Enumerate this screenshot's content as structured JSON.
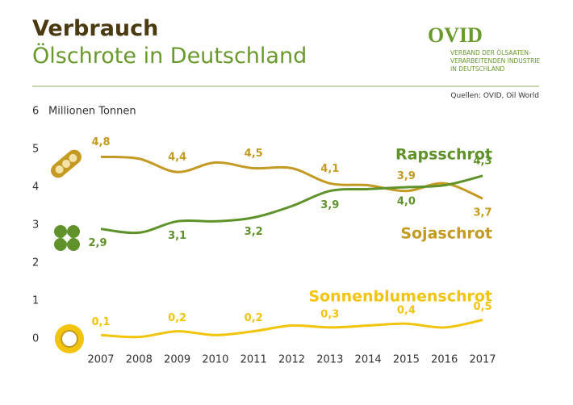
{
  "header": {
    "title": "Verbrauch",
    "subtitle": "Ölschrote in Deutschland",
    "logo": "OVID",
    "org_lines": [
      "VERBAND DER ÖLSAATEN-",
      "VERARBEITENDEN INDUSTRIE",
      "IN DEUTSCHLAND"
    ],
    "source": "Quellen: OVID, Oil World"
  },
  "chart_data": {
    "type": "line",
    "y_label": "Millionen Tonnen",
    "x": [
      2007,
      2008,
      2009,
      2010,
      2011,
      2012,
      2013,
      2014,
      2015,
      2016,
      2017
    ],
    "xlim": [
      2007,
      2017
    ],
    "xticks": [
      2007,
      2008,
      2009,
      2010,
      2011,
      2012,
      2013,
      2014,
      2015,
      2016,
      2017
    ],
    "ylim": [
      0,
      6
    ],
    "yticks": [
      0,
      1,
      2,
      3,
      4,
      5,
      6
    ],
    "grid": false,
    "series": [
      {
        "name": "Sojaschrot",
        "color": "#c49a22",
        "values": [
          4.8,
          4.75,
          4.4,
          4.65,
          4.5,
          4.5,
          4.1,
          4.05,
          3.9,
          4.1,
          3.7
        ],
        "value_labels": [
          "4,8",
          null,
          "4,4",
          null,
          "4,5",
          null,
          "4,1",
          null,
          "3,9",
          null,
          "3,7"
        ]
      },
      {
        "name": "Rapsschrot",
        "color": "#5f922a",
        "values": [
          2.9,
          2.8,
          3.1,
          3.1,
          3.2,
          3.5,
          3.9,
          3.95,
          4.0,
          4.05,
          4.3
        ],
        "value_labels": [
          "2,9",
          null,
          "3,1",
          null,
          "3,2",
          null,
          "3,9",
          null,
          "4,0",
          null,
          "4,3"
        ]
      },
      {
        "name": "Sonnenblumenschrot",
        "color": "#f2c40c",
        "values": [
          0.1,
          0.05,
          0.2,
          0.1,
          0.2,
          0.35,
          0.3,
          0.35,
          0.4,
          0.3,
          0.5
        ],
        "value_labels": [
          "0,1",
          null,
          "0,2",
          null,
          "0,2",
          null,
          "0,3",
          null,
          "0,4",
          null,
          "0,5"
        ]
      }
    ]
  }
}
